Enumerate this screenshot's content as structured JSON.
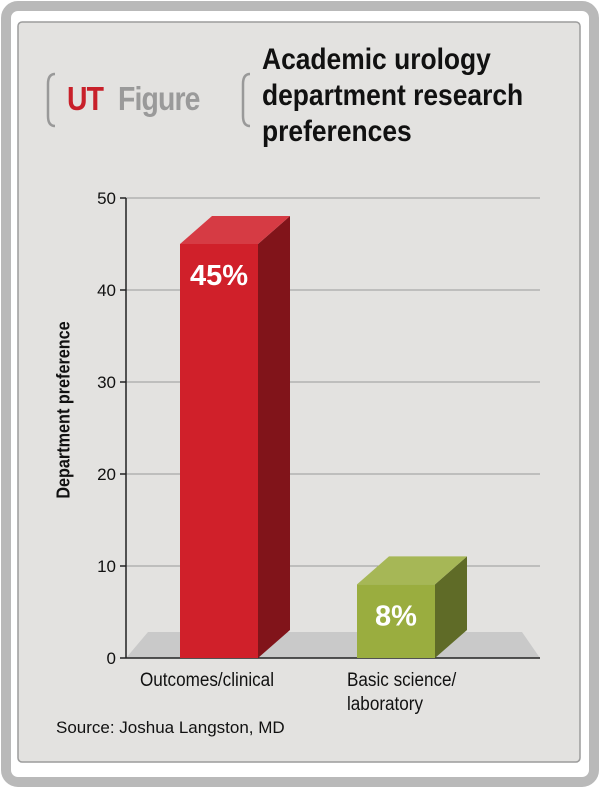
{
  "brand": {
    "prefix": "UT",
    "suffix": "Figure"
  },
  "chart_data": {
    "type": "bar",
    "title_lines": [
      "Academic urology",
      "department research",
      "preferences"
    ],
    "ylabel": "Department preference",
    "xlabel": "",
    "ylim": [
      0,
      50
    ],
    "yticks": [
      0,
      10,
      20,
      30,
      40,
      50
    ],
    "grid": true,
    "categories": [
      {
        "lines": [
          "Outcomes/clinical"
        ]
      },
      {
        "lines": [
          "Basic science/",
          "laboratory"
        ]
      }
    ],
    "values": [
      45,
      8
    ],
    "data_labels": [
      "45%",
      "8%"
    ],
    "colors": [
      "#d0202a",
      "#9aad3f"
    ]
  },
  "source": "Source: Joshua Langston, MD"
}
